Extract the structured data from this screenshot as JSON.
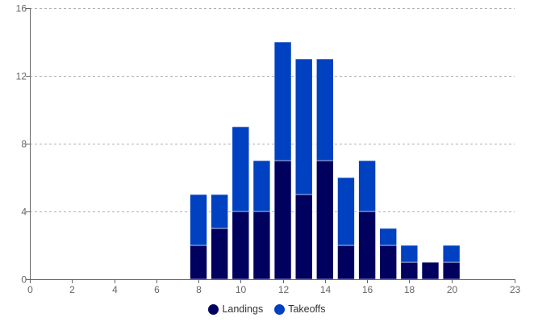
{
  "chart_data": {
    "type": "bar",
    "stacked": true,
    "x": [
      8,
      9,
      10,
      11,
      12,
      13,
      14,
      15,
      16,
      17,
      18,
      19,
      20
    ],
    "series": [
      {
        "name": "Landings",
        "color": "#00005e",
        "values": [
          2,
          3,
          4,
          4,
          7,
          5,
          7,
          2,
          4,
          2,
          1,
          1,
          1
        ]
      },
      {
        "name": "Takeoffs",
        "color": "#0041c2",
        "values": [
          3,
          2,
          5,
          3,
          7,
          8,
          6,
          4,
          3,
          1,
          1,
          0,
          1
        ]
      }
    ],
    "xlim": [
      0,
      23
    ],
    "ylim": [
      0,
      16
    ],
    "x_ticks": [
      "0",
      "2",
      "4",
      "6",
      "8",
      "10",
      "12",
      "14",
      "16",
      "18",
      "20",
      "23"
    ],
    "y_ticks": [
      "0",
      "4",
      "8",
      "12",
      "16"
    ],
    "title": "",
    "xlabel": "",
    "ylabel": "",
    "grid": true,
    "legend_position": "bottom-center"
  }
}
